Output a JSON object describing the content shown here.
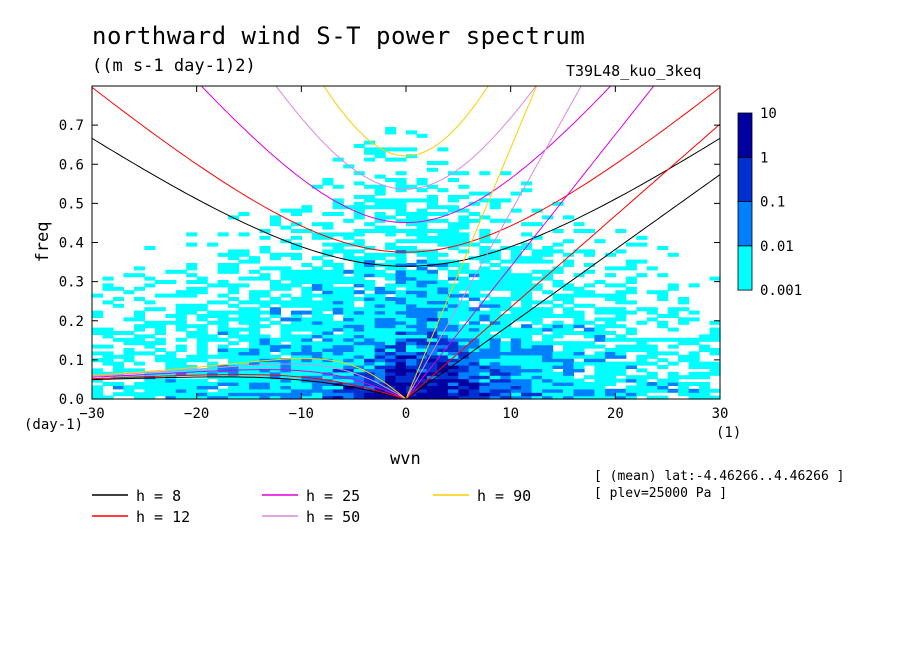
{
  "header": {
    "title": "northward wind S-T power spectrum",
    "units": "((m s-1 day-1)2)",
    "run": "T39L48_kuo_3keq"
  },
  "axes": {
    "x_unit_left": "(day-1)",
    "x_unit_right": "(1)"
  },
  "meta": {
    "line1": "[ (mean) lat:-4.46266..4.46266 ]",
    "line2": "[ plev=25000 Pa ]"
  },
  "chart_data": {
    "type": "heatmap",
    "title": "northward wind S-T power spectrum",
    "subtitle": "((m s-1 day-1)2)",
    "xlabel": "wvn",
    "ylabel": "freq",
    "xlim": [
      -30,
      30
    ],
    "ylim": [
      0,
      0.8
    ],
    "xticks": [
      -30,
      -20,
      -10,
      0,
      10,
      20,
      30
    ],
    "yticks": [
      0.0,
      0.1,
      0.2,
      0.3,
      0.4,
      0.5,
      0.6,
      0.7
    ],
    "ytick_labels": [
      "0.0",
      "0.1",
      "0.2",
      "0.3",
      "0.4",
      "0.5",
      "0.6",
      "0.7"
    ],
    "colorbar": {
      "levels": [
        "0.001",
        "0.01",
        "0.1",
        "1",
        "10"
      ],
      "colors": [
        "#00ffff",
        "#0080ff",
        "#0030d0",
        "#0000a0",
        "#4000a0"
      ]
    },
    "dispersion_curves": [
      {
        "name": "h =  8",
        "color": "#000000"
      },
      {
        "name": "h = 12",
        "color": "#ff0000"
      },
      {
        "name": "h = 25",
        "color": "#dd00dd"
      },
      {
        "name": "h = 50",
        "color": "#dd88dd"
      },
      {
        "name": "h = 90",
        "color": "#ffcc00"
      }
    ],
    "grid": false,
    "legend_position": "bottom"
  }
}
